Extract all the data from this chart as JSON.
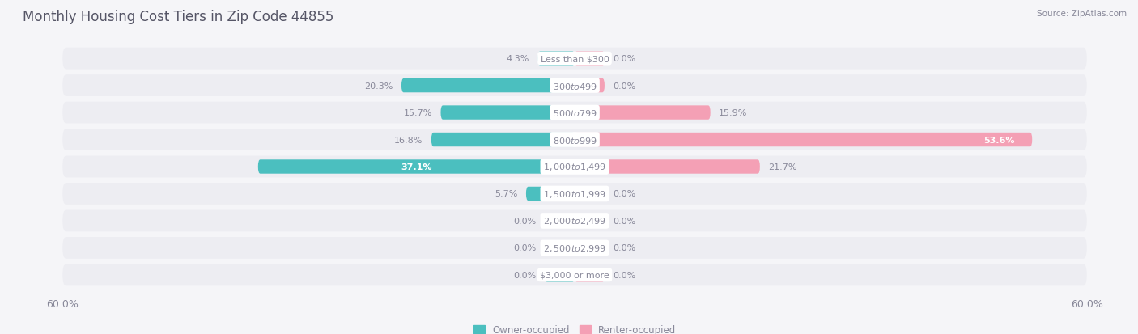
{
  "title": "Monthly Housing Cost Tiers in Zip Code 44855",
  "source": "Source: ZipAtlas.com",
  "categories": [
    "Less than $300",
    "$300 to $499",
    "$500 to $799",
    "$800 to $999",
    "$1,000 to $1,499",
    "$1,500 to $1,999",
    "$2,000 to $2,499",
    "$2,500 to $2,999",
    "$3,000 or more"
  ],
  "owner_values": [
    4.3,
    20.3,
    15.7,
    16.8,
    37.1,
    5.7,
    0.0,
    0.0,
    0.0
  ],
  "renter_values": [
    0.0,
    0.0,
    15.9,
    53.6,
    21.7,
    0.0,
    0.0,
    0.0,
    0.0
  ],
  "owner_color": "#4bbfbf",
  "renter_color": "#f4a0b5",
  "bar_bg_color": "#dddde4",
  "row_bg_color": "#ededf2",
  "background_color": "#f5f5f8",
  "title_color": "#555566",
  "label_color": "#888899",
  "value_color_dark": "#777788",
  "axis_limit": 60.0,
  "bar_height": 0.52,
  "stub_size": 3.5,
  "title_fontsize": 12,
  "label_fontsize": 9,
  "value_fontsize": 8,
  "category_fontsize": 8,
  "legend_fontsize": 8.5
}
